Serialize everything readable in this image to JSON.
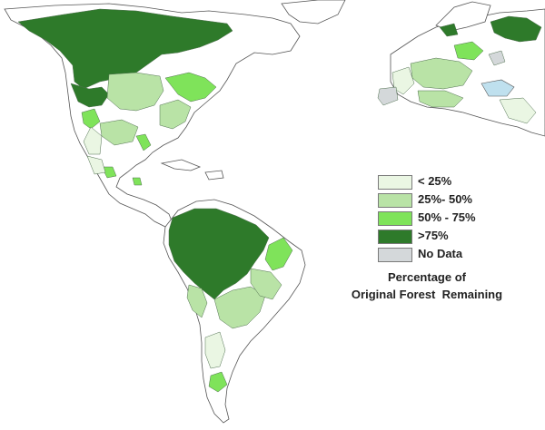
{
  "colors": {
    "lt25": "#eaf6e3",
    "p25_50": "#b9e3a6",
    "p50_75": "#7fe35a",
    "gt75": "#2e7a2a",
    "no_data": "#d4d8da",
    "water": "#bfe0ee"
  },
  "legend": {
    "items": [
      {
        "label": "< 25%",
        "color_key": "lt25"
      },
      {
        "label": "25%- 50%",
        "color_key": "p25_50"
      },
      {
        "label": "50% - 75%",
        "color_key": "p50_75"
      },
      {
        "label": ">75%",
        "color_key": "gt75"
      },
      {
        "label": "No Data",
        "color_key": "no_data"
      }
    ],
    "title_line1": "Percentage of",
    "title_line2": "Original Forest  Remaining"
  }
}
